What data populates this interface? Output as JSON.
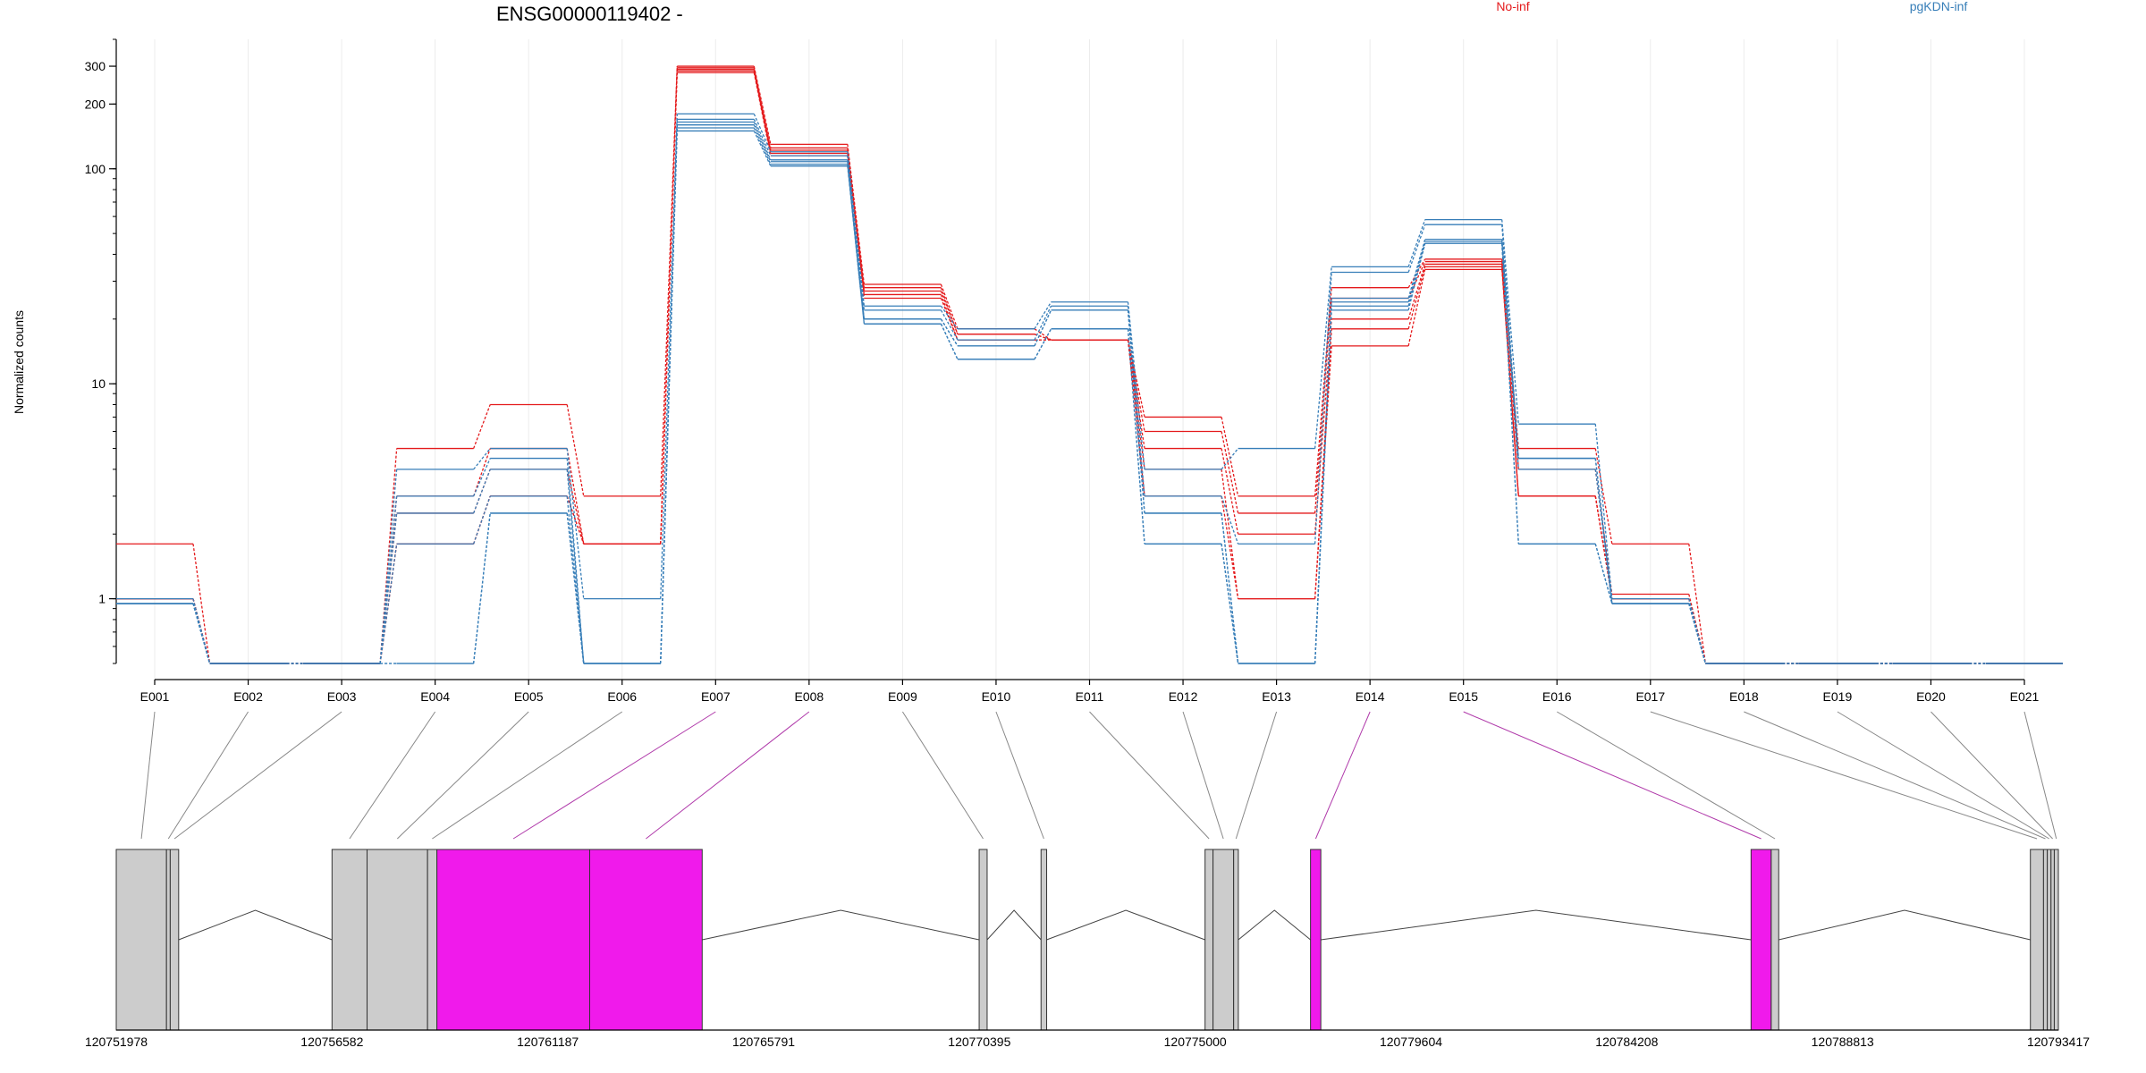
{
  "chart_data": {
    "type": "line",
    "title": "ENSG00000119402 -",
    "ylabel": "Normalized counts",
    "xlabel": "",
    "yscale": "log",
    "ylim": [
      0.5,
      400
    ],
    "y_ticks": [
      {
        "value": 1,
        "label": "1"
      },
      {
        "value": 10,
        "label": "10"
      },
      {
        "value": 100,
        "label": "100"
      },
      {
        "value": 200,
        "label": "200"
      },
      {
        "value": 300,
        "label": "300"
      }
    ],
    "grid": true,
    "legend_position": "top",
    "legend": [
      {
        "name": "No-inf",
        "color": "#e41a1c"
      },
      {
        "name": "pgKDN-inf",
        "color": "#377eb8"
      }
    ],
    "categories": [
      "E001",
      "E002",
      "E003",
      "E004",
      "E005",
      "E006",
      "E007",
      "E008",
      "E009",
      "E010",
      "E011",
      "E012",
      "E013",
      "E014",
      "E015",
      "E016",
      "E017",
      "E018",
      "E019",
      "E020",
      "E021"
    ],
    "series": [
      {
        "group": "No-inf",
        "values": [
          1.8,
          0.5,
          0.5,
          5.0,
          8.0,
          3.0,
          300,
          130,
          29,
          18,
          16,
          7.0,
          3.0,
          28,
          38,
          5.0,
          1.8,
          0.5,
          0.5,
          0.5,
          0.5
        ]
      },
      {
        "group": "No-inf",
        "values": [
          1.0,
          0.5,
          0.5,
          3.0,
          5.0,
          1.8,
          295,
          125,
          28,
          17,
          16,
          6.0,
          2.5,
          25,
          37,
          4.0,
          1.05,
          0.5,
          0.5,
          0.5,
          0.5
        ]
      },
      {
        "group": "No-inf",
        "values": [
          1.0,
          0.5,
          0.5,
          2.5,
          4.0,
          1.8,
          290,
          122,
          27,
          17,
          16,
          5.0,
          2.0,
          20,
          36,
          3.0,
          1.0,
          0.5,
          0.5,
          0.5,
          0.5
        ]
      },
      {
        "group": "No-inf",
        "values": [
          1.0,
          0.5,
          0.5,
          1.8,
          3.0,
          1.8,
          285,
          118,
          26,
          16,
          16,
          4.0,
          1.0,
          18,
          35,
          3.0,
          1.0,
          0.5,
          0.5,
          0.5,
          0.5
        ]
      },
      {
        "group": "No-inf",
        "values": [
          1.0,
          0.5,
          0.5,
          1.8,
          3.0,
          1.8,
          280,
          115,
          25,
          16,
          16,
          3.0,
          1.0,
          15,
          34,
          3.0,
          1.0,
          0.5,
          0.5,
          0.5,
          0.5
        ]
      },
      {
        "group": "pgKDN-inf",
        "values": [
          1.0,
          0.5,
          0.5,
          4.0,
          5.0,
          1.0,
          180,
          120,
          23,
          18,
          24,
          4.0,
          5.0,
          35,
          58,
          6.5,
          1.0,
          0.5,
          0.5,
          0.5,
          0.5
        ]
      },
      {
        "group": "pgKDN-inf",
        "values": [
          0.95,
          0.5,
          0.5,
          3.0,
          4.5,
          0.5,
          170,
          115,
          22,
          16,
          23,
          3.0,
          1.8,
          33,
          55,
          4.5,
          0.95,
          0.5,
          0.5,
          0.5,
          0.5
        ]
      },
      {
        "group": "pgKDN-inf",
        "values": [
          0.95,
          0.5,
          0.5,
          2.5,
          4.0,
          0.5,
          165,
          110,
          20,
          15,
          22,
          2.5,
          0.5,
          25,
          47,
          4.5,
          0.95,
          0.5,
          0.5,
          0.5,
          0.5
        ]
      },
      {
        "group": "pgKDN-inf",
        "values": [
          0.95,
          0.5,
          0.5,
          1.8,
          3.0,
          0.5,
          160,
          108,
          20,
          15,
          22,
          2.5,
          0.5,
          24,
          46,
          4.0,
          0.95,
          0.5,
          0.5,
          0.5,
          0.5
        ]
      },
      {
        "group": "pgKDN-inf",
        "values": [
          0.95,
          0.5,
          0.5,
          0.5,
          2.5,
          0.5,
          155,
          105,
          19,
          13,
          18,
          1.8,
          0.5,
          23,
          45,
          1.8,
          0.95,
          0.5,
          0.5,
          0.5,
          0.5
        ]
      },
      {
        "group": "pgKDN-inf",
        "values": [
          0.95,
          0.5,
          0.5,
          0.5,
          2.5,
          0.5,
          150,
          103,
          19,
          13,
          18,
          1.8,
          0.5,
          22,
          45,
          1.8,
          0.95,
          0.5,
          0.5,
          0.5,
          0.5
        ]
      }
    ],
    "gene_model": {
      "coordinates": [
        "120751978",
        "120756582",
        "120761187",
        "120765791",
        "120770395",
        "120775000",
        "120779604",
        "120784208",
        "120788813",
        "120793417"
      ],
      "exons": [
        {
          "id": "E001",
          "start": 120751978,
          "end": 120753050,
          "highlight": false
        },
        {
          "id": "E002",
          "start": 120753050,
          "end": 120753130,
          "highlight": false
        },
        {
          "id": "E003",
          "start": 120753130,
          "end": 120753310,
          "highlight": false
        },
        {
          "id": "E004",
          "start": 120756582,
          "end": 120757330,
          "highlight": false
        },
        {
          "id": "E005",
          "start": 120757330,
          "end": 120758620,
          "highlight": false
        },
        {
          "id": "E006",
          "start": 120758620,
          "end": 120758820,
          "highlight": false
        },
        {
          "id": "E007",
          "start": 120758820,
          "end": 120762080,
          "highlight": true
        },
        {
          "id": "E008",
          "start": 120762080,
          "end": 120764480,
          "highlight": true
        },
        {
          "id": "E009",
          "start": 120770390,
          "end": 120770560,
          "highlight": false
        },
        {
          "id": "E010",
          "start": 120771710,
          "end": 120771830,
          "highlight": false
        },
        {
          "id": "E011",
          "start": 120775210,
          "end": 120775380,
          "highlight": false
        },
        {
          "id": "E012",
          "start": 120775380,
          "end": 120775820,
          "highlight": false
        },
        {
          "id": "E013",
          "start": 120775820,
          "end": 120775920,
          "highlight": false
        },
        {
          "id": "E014",
          "start": 120777460,
          "end": 120777680,
          "highlight": true
        },
        {
          "id": "E015",
          "start": 120786860,
          "end": 120787290,
          "highlight": true
        },
        {
          "id": "E016",
          "start": 120787290,
          "end": 120787450,
          "highlight": false
        },
        {
          "id": "E017",
          "start": 120792820,
          "end": 120793100,
          "highlight": false
        },
        {
          "id": "E018",
          "start": 120793100,
          "end": 120793180,
          "highlight": false
        },
        {
          "id": "E019",
          "start": 120793180,
          "end": 120793260,
          "highlight": false
        },
        {
          "id": "E020",
          "start": 120793260,
          "end": 120793330,
          "highlight": false
        },
        {
          "id": "E021",
          "start": 120793330,
          "end": 120793417,
          "highlight": false
        }
      ],
      "colors": {
        "exon": "#cccccc",
        "highlight": "#f01aeb",
        "connector": "#888888",
        "highlight_connector": "#b03aaa"
      }
    }
  }
}
